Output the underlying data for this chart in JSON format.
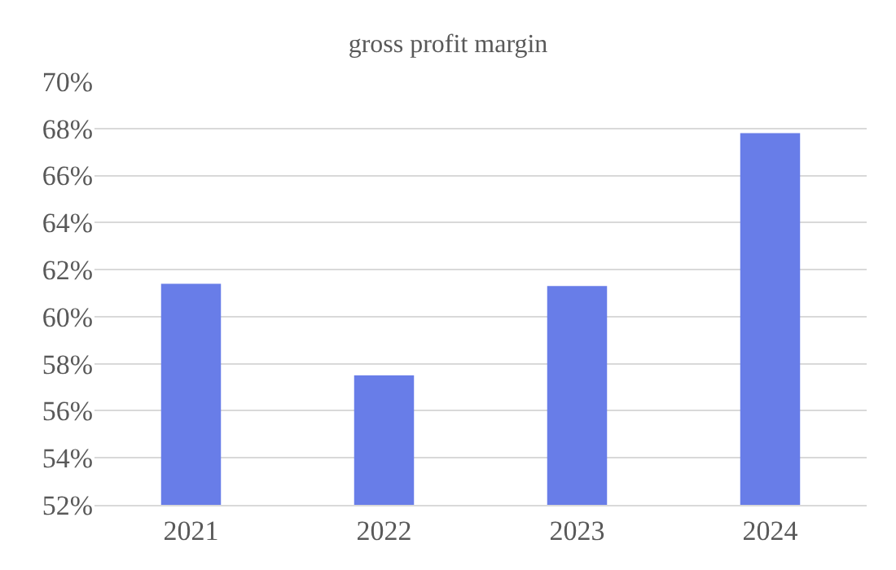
{
  "chart_data": {
    "type": "bar",
    "title": "gross profit margin",
    "categories": [
      "2021",
      "2022",
      "2023",
      "2024"
    ],
    "values": [
      61.4,
      57.5,
      61.3,
      67.8
    ],
    "color": "#687de8",
    "ylim": [
      52,
      70
    ],
    "yticks": [
      {
        "value": 52,
        "label": "52%"
      },
      {
        "value": 54,
        "label": "54%"
      },
      {
        "value": 56,
        "label": "56%"
      },
      {
        "value": 58,
        "label": "58%"
      },
      {
        "value": 60,
        "label": "60%"
      },
      {
        "value": 62,
        "label": "62%"
      },
      {
        "value": 64,
        "label": "64%"
      },
      {
        "value": 66,
        "label": "66%"
      },
      {
        "value": 68,
        "label": "68%"
      },
      {
        "value": 70,
        "label": "70%"
      }
    ],
    "grid": "y",
    "legend": false
  }
}
